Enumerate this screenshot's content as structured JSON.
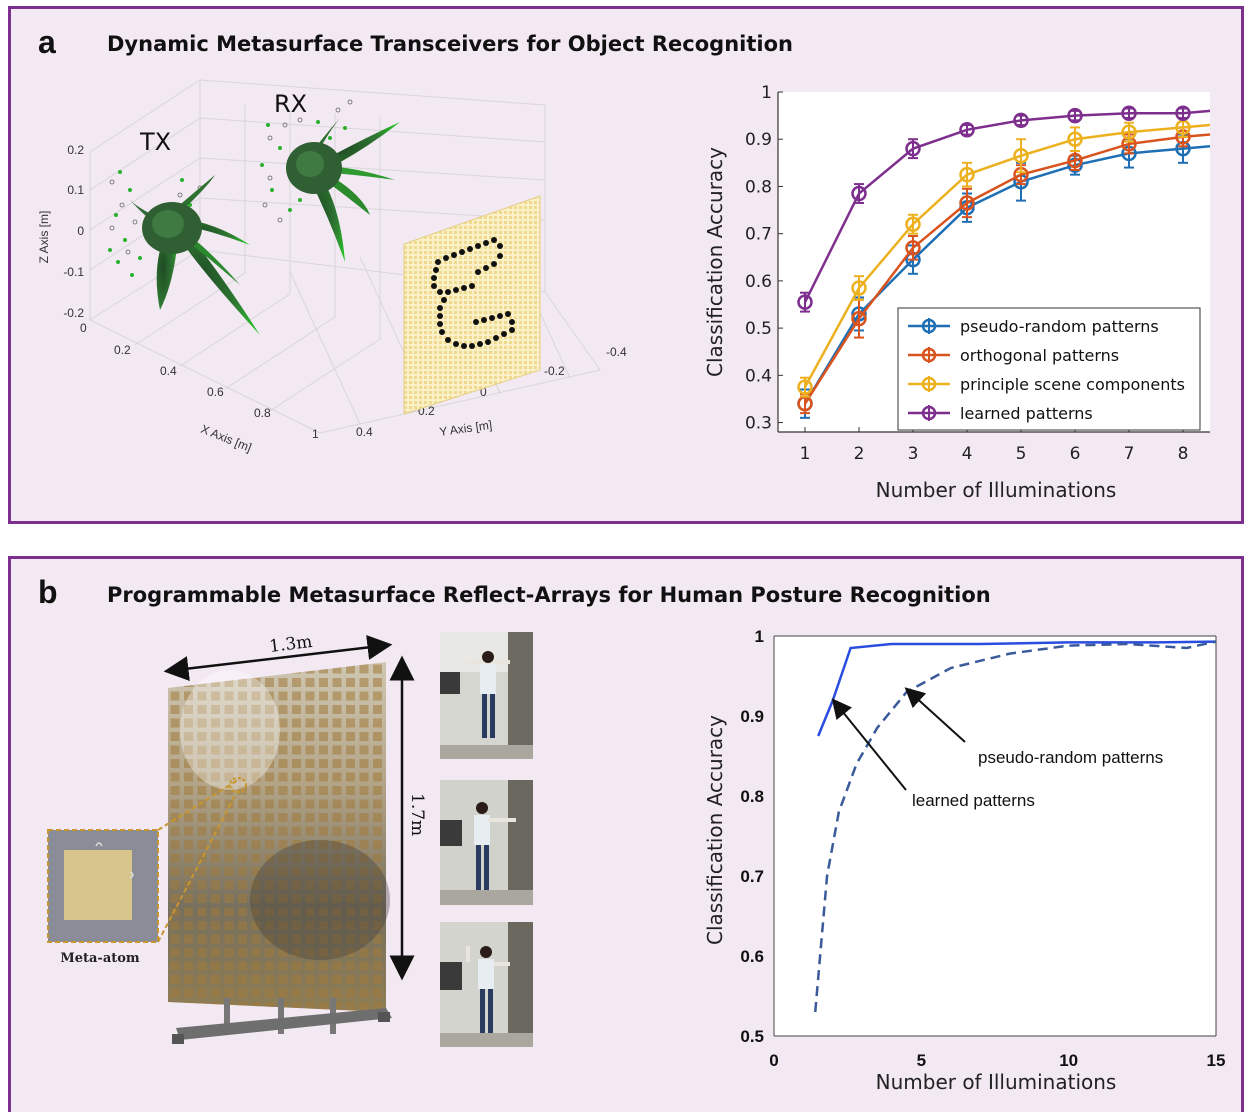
{
  "panel_a": {
    "letter": "a",
    "title": "Dynamic Metasurface Transceivers for Object Recognition",
    "tx_label": "TX",
    "rx_label": "RX",
    "z_axis_label": "Z Axis [m]",
    "x_axis_label": "X Axis [m]",
    "y_axis_label": "Y Axis [m]",
    "z_ticks": [
      "0.2",
      "0.1",
      "0",
      "-0.1",
      "-0.2"
    ],
    "x_ticks": [
      "0",
      "0.2",
      "0.4",
      "0.6",
      "0.8",
      "1"
    ],
    "y_ticks": [
      "0.4",
      "0.2",
      "0",
      "-0.2",
      "-0.4"
    ]
  },
  "panel_b": {
    "letter": "b",
    "title": "Programmable Metasurface Reflect-Arrays for Human Posture Recognition",
    "width_label": "1.3m",
    "height_label": "1.7m",
    "meta_atom_label": "Meta-atom"
  },
  "chart_data": [
    {
      "type": "line",
      "xlabel": "Number of Illuminations",
      "ylabel": "Classification Accuracy",
      "x": [
        1,
        2,
        3,
        4,
        5,
        6,
        7,
        8
      ],
      "xticks": [
        "1",
        "2",
        "3",
        "4",
        "5",
        "6",
        "7",
        "8"
      ],
      "yticks": [
        "0.3",
        "0.4",
        "0.5",
        "0.6",
        "0.7",
        "0.8",
        "0.9",
        "1"
      ],
      "xlim": [
        0.5,
        8.5
      ],
      "ylim": [
        0.28,
        1.0
      ],
      "legend_position": "bottom-right",
      "error_bars": true,
      "series": [
        {
          "name": "pseudo-random patterns",
          "color": "#1f6fb5",
          "values": [
            0.34,
            0.53,
            0.645,
            0.755,
            0.81,
            0.845,
            0.87,
            0.88
          ],
          "errors": [
            0.03,
            0.035,
            0.03,
            0.03,
            0.04,
            0.02,
            0.03,
            0.03
          ]
        },
        {
          "name": "orthogonal patterns",
          "color": "#d9531e",
          "values": [
            0.34,
            0.52,
            0.67,
            0.765,
            0.825,
            0.855,
            0.89,
            0.905
          ],
          "errors": [
            0.02,
            0.04,
            0.025,
            0.03,
            0.02,
            0.02,
            0.02,
            0.02
          ]
        },
        {
          "name": "principle scene components",
          "color": "#edb120",
          "values": [
            0.375,
            0.585,
            0.72,
            0.825,
            0.865,
            0.9,
            0.915,
            0.925
          ],
          "errors": [
            0.02,
            0.025,
            0.02,
            0.025,
            0.035,
            0.025,
            0.02,
            0.02
          ]
        },
        {
          "name": "learned patterns",
          "color": "#7e2f8e",
          "values": [
            0.555,
            0.785,
            0.88,
            0.92,
            0.94,
            0.95,
            0.955,
            0.955
          ],
          "errors": [
            0.02,
            0.02,
            0.02,
            0.01,
            0.01,
            0.01,
            0.01,
            0.01
          ]
        }
      ]
    },
    {
      "type": "line",
      "xlabel": "Number of Illuminations",
      "ylabel": "Classification Accuracy",
      "xticks": [
        "0",
        "5",
        "10",
        "15"
      ],
      "yticks": [
        "0.5",
        "0.6",
        "0.7",
        "0.8",
        "0.9",
        "1"
      ],
      "xlim": [
        0,
        15
      ],
      "ylim": [
        0.5,
        1.0
      ],
      "annotations": [
        "pseudo-random patterns",
        "learned patterns"
      ],
      "series": [
        {
          "name": "learned patterns",
          "color": "#2a4de0",
          "style": "solid",
          "x": [
            1.5,
            2,
            2.6,
            4,
            7,
            10,
            13,
            15
          ],
          "values": [
            0.875,
            0.92,
            0.985,
            0.99,
            0.99,
            0.992,
            0.992,
            0.993
          ]
        },
        {
          "name": "pseudo-random patterns",
          "color": "#3a5a9a",
          "style": "dashed",
          "x": [
            1.4,
            1.8,
            2.2,
            2.8,
            3.5,
            4.5,
            6,
            8,
            10,
            12,
            14,
            15
          ],
          "values": [
            0.53,
            0.7,
            0.78,
            0.84,
            0.885,
            0.93,
            0.96,
            0.978,
            0.988,
            0.99,
            0.985,
            0.993
          ]
        }
      ]
    }
  ]
}
